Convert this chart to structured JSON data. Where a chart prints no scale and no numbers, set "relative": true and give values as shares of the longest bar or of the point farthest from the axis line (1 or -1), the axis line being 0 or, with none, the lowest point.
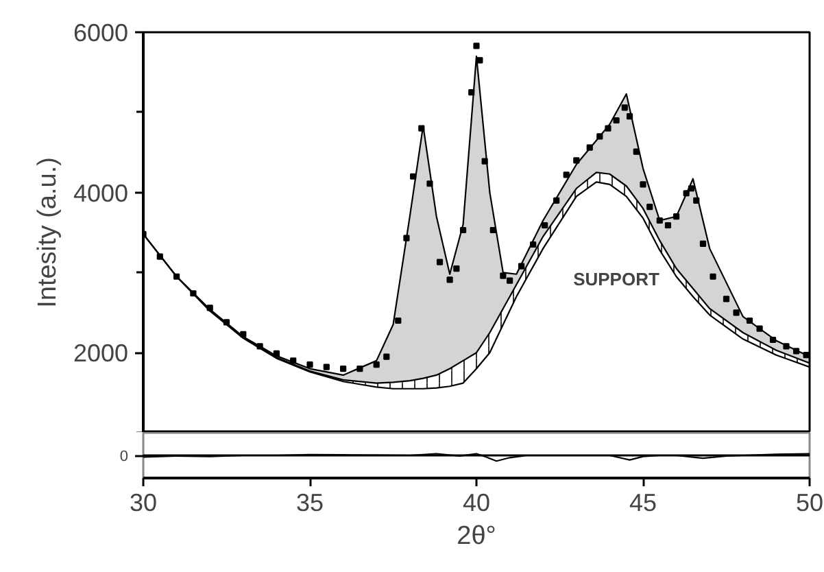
{
  "chart_data": [
    {
      "type": "line",
      "ylabel": "Intesity (a.u.)",
      "xlim": [
        30,
        50
      ],
      "ylim": [
        1000,
        6000
      ],
      "xticks": [
        30,
        35,
        40,
        45,
        50
      ],
      "yticks": [
        {
          "value": 1000,
          "label": null
        },
        2000,
        {
          "value": 3000,
          "label": null
        },
        4000,
        {
          "value": 5000,
          "label": null
        },
        6000
      ],
      "tick_labels": "y",
      "annotations": [
        "SUPPORT"
      ],
      "series": [
        {
          "type": "line",
          "color": "#000000",
          "x": [
            30,
            31,
            32,
            33,
            34,
            35,
            36,
            37,
            37.5,
            38,
            38.4,
            38.8,
            39.2,
            39.6,
            40,
            40.4,
            40.8,
            41.2,
            42,
            43,
            43.6,
            44,
            44.5,
            45,
            45.5,
            46,
            46.5,
            47,
            48,
            49,
            50
          ],
          "values": [
            3480,
            2950,
            2540,
            2200,
            1960,
            1800,
            1720,
            1900,
            2350,
            3700,
            4830,
            3700,
            2980,
            3600,
            5700,
            4000,
            3000,
            2980,
            3650,
            4350,
            4650,
            4850,
            5230,
            4300,
            3650,
            3700,
            4170,
            3300,
            2450,
            2150,
            1950
          ],
          "lower": [
            3480,
            2950,
            2530,
            2190,
            1940,
            1770,
            1660,
            1620,
            1630,
            1650,
            1680,
            1720,
            1800,
            1900,
            2000,
            2250,
            2550,
            2850,
            3450,
            4050,
            4250,
            4230,
            4080,
            3800,
            3400,
            3050,
            2800,
            2550,
            2250,
            2030,
            1870
          ],
          "upper": [
            3480,
            2950,
            2540,
            2200,
            1960,
            1800,
            1720,
            1900,
            2350,
            3700,
            4830,
            3700,
            2980,
            3600,
            5700,
            4000,
            3000,
            2980,
            3650,
            4350,
            4650,
            4850,
            5230,
            4300,
            3650,
            3700,
            4170,
            3300,
            2450,
            2150,
            1950
          ]
        },
        {
          "type": "line",
          "color": "#000000",
          "x": [
            30,
            31,
            32,
            33,
            34,
            35,
            36,
            37,
            37.5,
            38,
            38.4,
            38.8,
            39.2,
            39.6,
            40,
            40.4,
            40.8,
            41.2,
            42,
            43,
            43.6,
            44,
            44.5,
            45,
            45.5,
            46,
            46.5,
            47,
            48,
            49,
            50
          ],
          "values": [
            3480,
            2950,
            2530,
            2190,
            1940,
            1770,
            1660,
            1620,
            1630,
            1650,
            1680,
            1720,
            1800,
            1900,
            2000,
            2250,
            2550,
            2850,
            3450,
            4050,
            4250,
            4230,
            4080,
            3800,
            3400,
            3050,
            2800,
            2550,
            2250,
            2030,
            1870
          ],
          "lower": [
            3480,
            2950,
            2520,
            2180,
            1930,
            1760,
            1640,
            1570,
            1550,
            1545,
            1550,
            1560,
            1580,
            1620,
            1800,
            2000,
            2350,
            2700,
            3300,
            3950,
            4130,
            4100,
            3950,
            3680,
            3280,
            2950,
            2700,
            2470,
            2170,
            1970,
            1820
          ],
          "upper": [
            3480,
            2950,
            2530,
            2190,
            1940,
            1770,
            1660,
            1620,
            1630,
            1650,
            1680,
            1720,
            1800,
            1900,
            2000,
            2250,
            2550,
            2850,
            3450,
            4050,
            4250,
            4230,
            4080,
            3800,
            3400,
            3050,
            2800,
            2550,
            2250,
            2030,
            1870
          ]
        },
        {
          "type": "line",
          "color": "#000000",
          "x": [
            30,
            31,
            32,
            33,
            34,
            35,
            36,
            37,
            37.5,
            38,
            38.4,
            38.8,
            39.2,
            39.6,
            40,
            40.4,
            40.8,
            41.2,
            42,
            43,
            43.6,
            44,
            44.5,
            45,
            45.5,
            46,
            46.5,
            47,
            48,
            49,
            50
          ],
          "values": [
            3480,
            2950,
            2520,
            2180,
            1930,
            1760,
            1640,
            1570,
            1550,
            1550,
            1550,
            1560,
            1580,
            1620,
            1800,
            2000,
            2350,
            2700,
            3300,
            3950,
            4130,
            4100,
            3950,
            3680,
            3280,
            2950,
            2700,
            2470,
            2170,
            1970,
            1820
          ]
        },
        {
          "type": "scatter",
          "color": "#000000",
          "marker": "square",
          "x": [
            30,
            30.5,
            31,
            31.5,
            32,
            32.5,
            33,
            33.5,
            34,
            34.5,
            35,
            35.5,
            36,
            36.5,
            37,
            37.3,
            37.65,
            37.9,
            38.1,
            38.35,
            38.6,
            38.9,
            39.2,
            39.4,
            39.6,
            39.85,
            40.0,
            40.1,
            40.25,
            40.5,
            40.8,
            41.0,
            41.35,
            41.7,
            42.05,
            42.4,
            42.7,
            43.0,
            43.4,
            43.7,
            43.95,
            44.2,
            44.45,
            44.6,
            44.8,
            45.0,
            45.2,
            45.5,
            45.75,
            46.0,
            46.3,
            46.45,
            46.6,
            46.8,
            47.1,
            47.5,
            47.8,
            48.2,
            48.5,
            48.9,
            49.3,
            49.6,
            49.9
          ],
          "values": [
            3480,
            3200,
            2950,
            2740,
            2560,
            2380,
            2230,
            2080,
            1990,
            1900,
            1850,
            1820,
            1800,
            1800,
            1850,
            1950,
            2400,
            3430,
            4200,
            4800,
            4110,
            3130,
            2910,
            3050,
            3530,
            5250,
            5830,
            5650,
            4390,
            3530,
            2960,
            2900,
            3080,
            3350,
            3590,
            3900,
            4220,
            4400,
            4560,
            4700,
            4800,
            4900,
            5060,
            4950,
            4510,
            4100,
            3820,
            3650,
            3590,
            3700,
            3990,
            4050,
            3900,
            3360,
            2950,
            2670,
            2500,
            2400,
            2300,
            2160,
            2080,
            2020,
            1970
          ]
        }
      ]
    },
    {
      "type": "line",
      "relative": true,
      "xlabel": "2θ°",
      "xlim": [
        30,
        50
      ],
      "xticks": [
        30,
        35,
        40,
        45,
        50
      ],
      "tick_labels": "x",
      "ref_lines": [
        {
          "axis": "y",
          "value": 0,
          "label": "0"
        }
      ],
      "series": [
        {
          "color": "#000000",
          "x": [
            30,
            31,
            32,
            33,
            34,
            35,
            36,
            37,
            38,
            38.8,
            39.5,
            40,
            40.3,
            40.6,
            41,
            41.5,
            42,
            43,
            44,
            44.6,
            45,
            45.5,
            46,
            46.8,
            47.5,
            48,
            49,
            50
          ],
          "values": [
            -0.3,
            -0.1,
            -0.2,
            0,
            0,
            0.15,
            0.1,
            0.05,
            0,
            0.3,
            -0.1,
            0.3,
            -0.3,
            -1,
            -0.4,
            0,
            0,
            0,
            0,
            -0.8,
            -0.2,
            0,
            0,
            -0.5,
            -0.1,
            0,
            0.2,
            0.3
          ]
        }
      ]
    }
  ]
}
